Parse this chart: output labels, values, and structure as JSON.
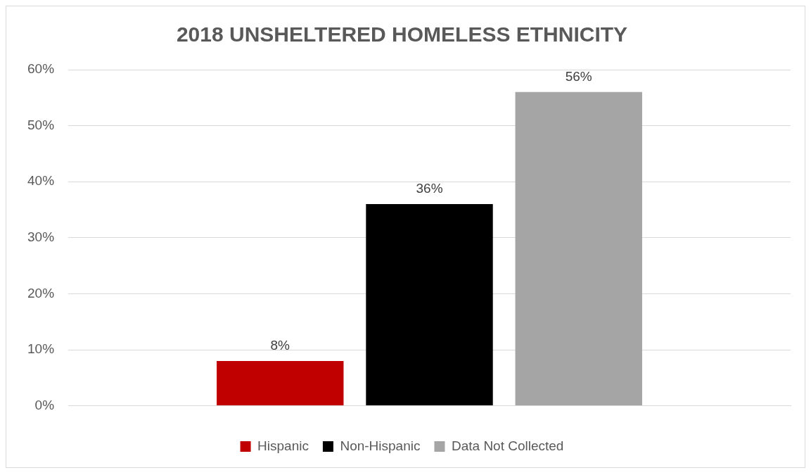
{
  "chart_data": {
    "type": "bar",
    "title": "2018 UNSHELTERED HOMELESS ETHNICITY",
    "categories": [
      null
    ],
    "series": [
      {
        "name": "Hispanic",
        "color": "#c00000",
        "values": [
          8
        ],
        "value_labels": [
          "8%"
        ]
      },
      {
        "name": "Non-Hispanic",
        "color": "#000000",
        "values": [
          36
        ],
        "value_labels": [
          "36%"
        ]
      },
      {
        "name": "Data Not Collected",
        "color": "#a5a5a5",
        "values": [
          56
        ],
        "value_labels": [
          "56%"
        ]
      }
    ],
    "ylim": [
      0,
      60
    ],
    "yticks": [
      {
        "value": 0,
        "label": "0%"
      },
      {
        "value": 10,
        "label": "10%"
      },
      {
        "value": 20,
        "label": "20%"
      },
      {
        "value": 30,
        "label": "30%"
      },
      {
        "value": 40,
        "label": "40%"
      },
      {
        "value": 50,
        "label": "50%"
      },
      {
        "value": 60,
        "label": "60%"
      }
    ],
    "grid": "y",
    "legend": "bottom"
  }
}
